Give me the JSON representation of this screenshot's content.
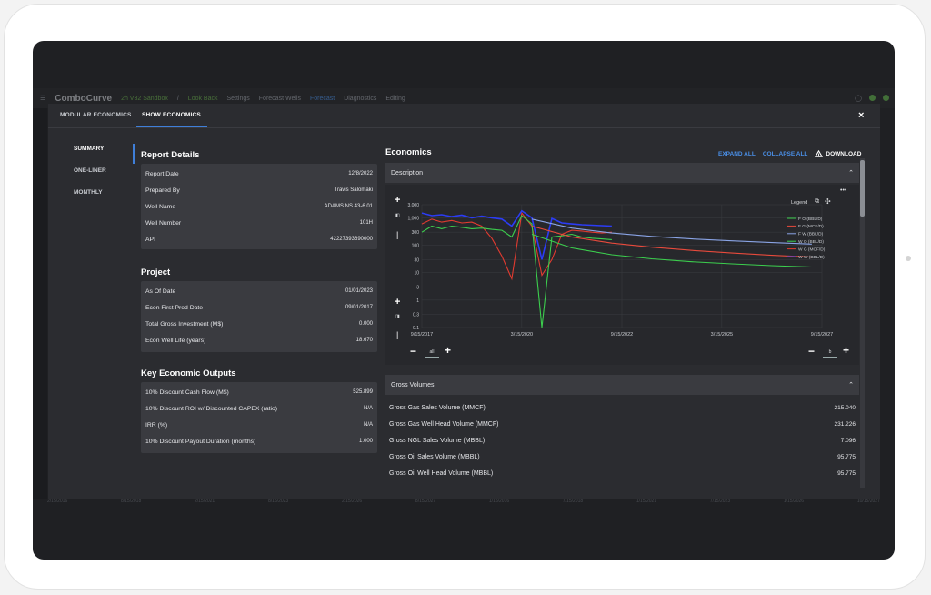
{
  "app": {
    "brand": "ComboCurve",
    "breadcrumb_project": "2h V32 Sandbox",
    "breadcrumb_scenario": "Look Back",
    "nav": [
      "Settings",
      "Forecast Wells",
      "Forecast",
      "Diagnostics",
      "Editing"
    ]
  },
  "modal": {
    "tabs": [
      "MODULAR ECONOMICS",
      "SHOW ECONOMICS"
    ],
    "active_tab": "SHOW ECONOMICS",
    "close": "×"
  },
  "sidenav": [
    "SUMMARY",
    "ONE-LINER",
    "MONTHLY"
  ],
  "report_details": {
    "title": "Report Details",
    "rows": [
      {
        "label": "Report Date",
        "value": "12/8/2022"
      },
      {
        "label": "Prepared By",
        "value": "Travis Salomaki"
      },
      {
        "label": "Well Name",
        "value": "ADAMS NS 43-6 01"
      },
      {
        "label": "Well Number",
        "value": "101H"
      },
      {
        "label": "API",
        "value": "42227393690000"
      }
    ]
  },
  "project": {
    "title": "Project",
    "rows": [
      {
        "label": "As Of Date",
        "value": "01/01/2023"
      },
      {
        "label": "Econ First Prod Date",
        "value": "09/01/2017"
      },
      {
        "label": "Total Gross Investment (M$)",
        "value": "0.000"
      },
      {
        "label": "Econ Well Life (years)",
        "value": "18.670"
      }
    ]
  },
  "key_outputs": {
    "title": "Key Economic Outputs",
    "rows": [
      {
        "label": "10% Discount Cash Flow (M$)",
        "value": "525.899"
      },
      {
        "label": "10% Discount ROI w/ Discounted CAPEX (ratio)",
        "value": "N/A"
      },
      {
        "label": "IRR (%)",
        "value": "N/A"
      },
      {
        "label": "10% Discount Payout Duration (months)",
        "value": "1.000"
      }
    ]
  },
  "economics": {
    "title": "Economics",
    "expand_all": "EXPAND ALL",
    "collapse_all": "COLLAPSE ALL",
    "download": "DOWNLOAD",
    "description_label": "Description",
    "gross_volumes_label": "Gross Volumes",
    "gross_volumes": [
      {
        "label": "Gross Gas Sales Volume (MMCF)",
        "value": "215.040"
      },
      {
        "label": "Gross Gas Well Head Volume (MMCF)",
        "value": "231.226"
      },
      {
        "label": "Gross NGL Sales Volume (MBBL)",
        "value": "7.096"
      },
      {
        "label": "Gross Oil Sales Volume (MBBL)",
        "value": "95.775"
      },
      {
        "label": "Gross Oil Well Head Volume (MBBL)",
        "value": "95.775"
      }
    ]
  },
  "chart_controls": {
    "more": "•••",
    "legend_title": "Legend",
    "left_zoom_value": "all",
    "right_zoom_value": "b"
  },
  "chart_data": {
    "type": "line",
    "title": "",
    "yscale": "log",
    "ylim": [
      0.1,
      3000
    ],
    "ytick_labels": [
      "3,000",
      "1,000",
      "300",
      "100",
      "30",
      "10",
      "3",
      "1",
      "0.3",
      "0.1"
    ],
    "xtick_labels": [
      "9/15/2017",
      "3/15/2020",
      "9/15/2022",
      "3/15/2025",
      "9/15/2027"
    ],
    "xlim": [
      "2017-09-15",
      "2027-09-15"
    ],
    "legend": [
      "F O (BBL/D)",
      "F G (MCF/D)",
      "F W (BBL/D)",
      "W O (BBL/D)",
      "W G (MCF/D)",
      "W W (BBL/D)"
    ],
    "colors": {
      "oil": "#3ccf4e",
      "gas": "#e84a3c",
      "water": "#4a6cf0",
      "forecast_water": "#8aa4e6",
      "gas_hist": "#e23b30",
      "blue_hist": "#2b3cf5"
    },
    "series": [
      {
        "name": "W G (MCF/D)",
        "x": [
          "2017-09",
          "2017-12",
          "2018-03",
          "2018-06",
          "2018-09",
          "2018-12",
          "2019-03",
          "2019-06",
          "2019-09",
          "2019-12",
          "2020-03",
          "2020-06",
          "2020-09",
          "2020-12",
          "2021-03",
          "2021-06",
          "2021-09",
          "2021-12",
          "2022-03",
          "2022-06"
        ],
        "values": [
          600,
          900,
          700,
          800,
          650,
          700,
          500,
          180,
          40,
          6,
          1500,
          500,
          8,
          30,
          250,
          350,
          330,
          300,
          280,
          300
        ]
      },
      {
        "name": "W W (BBL/D)",
        "x": [
          "2017-09",
          "2017-12",
          "2018-03",
          "2018-06",
          "2018-09",
          "2018-12",
          "2019-03",
          "2019-06",
          "2019-09",
          "2019-12",
          "2020-03",
          "2020-06",
          "2020-09",
          "2020-12",
          "2021-03",
          "2021-06",
          "2021-09",
          "2021-12",
          "2022-03",
          "2022-06"
        ],
        "values": [
          1500,
          1200,
          1300,
          1100,
          1250,
          1000,
          1150,
          1000,
          900,
          500,
          1800,
          1000,
          30,
          950,
          650,
          600,
          560,
          540,
          520,
          500
        ]
      },
      {
        "name": "W O (BBL/D)",
        "x": [
          "2017-09",
          "2017-12",
          "2018-03",
          "2018-06",
          "2018-09",
          "2018-12",
          "2019-03",
          "2019-06",
          "2019-09",
          "2019-12",
          "2020-03",
          "2020-06",
          "2020-09",
          "2020-12",
          "2021-03",
          "2021-06",
          "2021-09",
          "2021-12",
          "2022-03",
          "2022-06"
        ],
        "values": [
          300,
          500,
          400,
          500,
          450,
          400,
          420,
          380,
          350,
          200,
          1200,
          600,
          0.1,
          200,
          220,
          250,
          200,
          180,
          170,
          160
        ]
      },
      {
        "name": "F W (BBL/D)",
        "x": [
          "2020-06",
          "2021-06",
          "2022-06",
          "2023-06",
          "2024-06",
          "2025-06",
          "2026-06",
          "2027-06"
        ],
        "values": [
          900,
          420,
          280,
          210,
          170,
          145,
          125,
          110
        ]
      },
      {
        "name": "F G (MCF/D)",
        "x": [
          "2020-06",
          "2021-06",
          "2022-06",
          "2023-06",
          "2024-06",
          "2025-06",
          "2026-06",
          "2027-06"
        ],
        "values": [
          500,
          200,
          120,
          85,
          65,
          52,
          43,
          37
        ]
      },
      {
        "name": "F O (BBL/D)",
        "x": [
          "2020-06",
          "2021-06",
          "2022-06",
          "2023-06",
          "2024-06",
          "2025-06",
          "2026-06",
          "2027-06"
        ],
        "values": [
          250,
          80,
          45,
          32,
          25,
          21,
          18,
          16
        ]
      }
    ]
  }
}
